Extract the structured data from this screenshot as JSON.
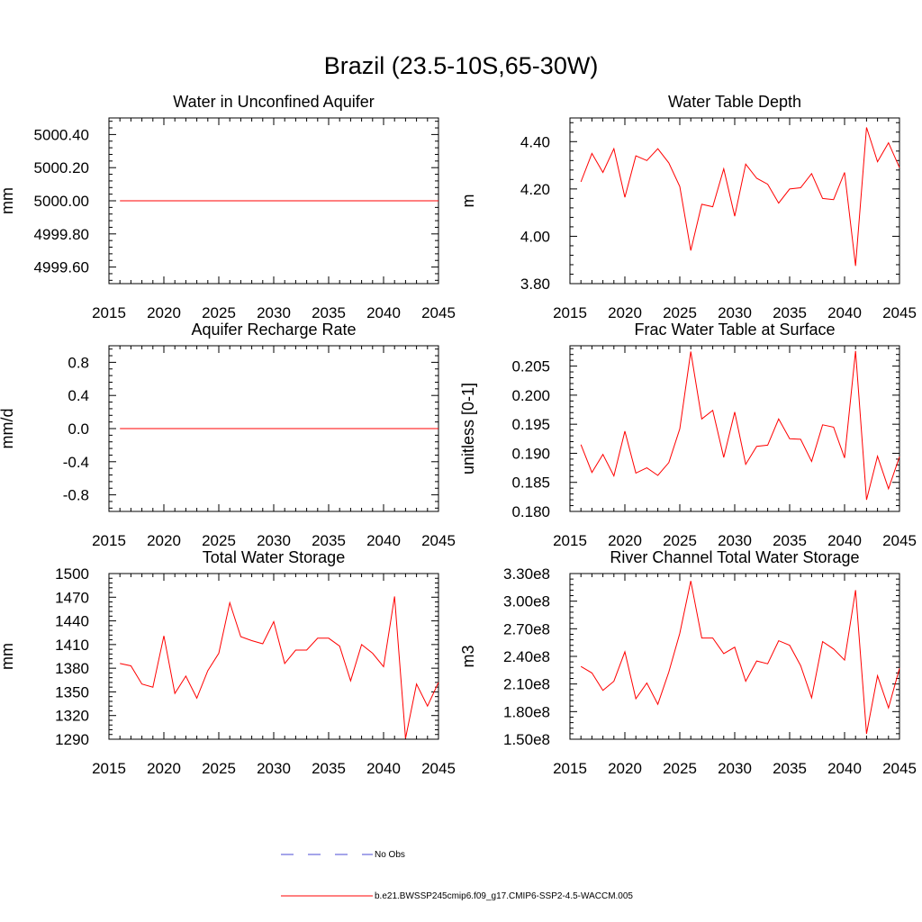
{
  "figure": {
    "title": "Brazil (23.5-10S,65-30W)"
  },
  "chart_data": [
    {
      "type": "line",
      "title": "Water in Unconfined Aquifer",
      "xlabel": "",
      "ylabel": "mm",
      "xlim": [
        2015,
        2045
      ],
      "ylim": [
        4999.5,
        5000.5
      ],
      "x_ticks": [
        2015,
        2020,
        2025,
        2030,
        2035,
        2040,
        2045
      ],
      "y_ticks": [
        "4999.60",
        "4999.80",
        "5000.00",
        "5000.20",
        "5000.40"
      ],
      "x": [
        2016,
        2017,
        2018,
        2019,
        2020,
        2021,
        2022,
        2023,
        2024,
        2025,
        2026,
        2027,
        2028,
        2029,
        2030,
        2031,
        2032,
        2033,
        2034,
        2035,
        2036,
        2037,
        2038,
        2039,
        2040,
        2041,
        2042,
        2043,
        2044,
        2045
      ],
      "series": [
        {
          "name": "b.e21.BWSSP245cmip6.f09_g17.CMIP6-SSP2-4.5-WACCM.005",
          "color": "#ff0000",
          "values": [
            5000,
            5000,
            5000,
            5000,
            5000,
            5000,
            5000,
            5000,
            5000,
            5000,
            5000,
            5000,
            5000,
            5000,
            5000,
            5000,
            5000,
            5000,
            5000,
            5000,
            5000,
            5000,
            5000,
            5000,
            5000,
            5000,
            5000,
            5000,
            5000,
            5000
          ]
        }
      ]
    },
    {
      "type": "line",
      "title": "Water Table Depth",
      "xlabel": "",
      "ylabel": "m",
      "xlim": [
        2015,
        2045
      ],
      "ylim": [
        3.8,
        4.5
      ],
      "x_ticks": [
        2015,
        2020,
        2025,
        2030,
        2035,
        2040,
        2045
      ],
      "y_ticks": [
        "3.80",
        "4.00",
        "4.20",
        "4.40"
      ],
      "x": [
        2016,
        2017,
        2018,
        2019,
        2020,
        2021,
        2022,
        2023,
        2024,
        2025,
        2026,
        2027,
        2028,
        2029,
        2030,
        2031,
        2032,
        2033,
        2034,
        2035,
        2036,
        2037,
        2038,
        2039,
        2040,
        2041,
        2042,
        2043,
        2044,
        2045
      ],
      "series": [
        {
          "name": "b.e21.BWSSP245cmip6.f09_g17.CMIP6-SSP2-4.5-WACCM.005",
          "color": "#ff0000",
          "values": [
            4.23,
            4.35,
            4.27,
            4.37,
            4.165,
            4.34,
            4.32,
            4.37,
            4.31,
            4.21,
            3.94,
            4.135,
            4.125,
            4.285,
            4.085,
            4.305,
            4.245,
            4.22,
            4.14,
            4.2,
            4.205,
            4.265,
            4.16,
            4.155,
            4.27,
            3.875,
            4.46,
            4.315,
            4.395,
            4.29
          ]
        }
      ]
    },
    {
      "type": "line",
      "title": "Aquifer Recharge Rate",
      "xlabel": "",
      "ylabel": "mm/d",
      "xlim": [
        2015,
        2045
      ],
      "ylim": [
        -1.0,
        1.0
      ],
      "x_ticks": [
        2015,
        2020,
        2025,
        2030,
        2035,
        2040,
        2045
      ],
      "y_ticks": [
        "-0.8",
        "-0.4",
        "0.0",
        "0.4",
        "0.8"
      ],
      "x": [
        2016,
        2017,
        2018,
        2019,
        2020,
        2021,
        2022,
        2023,
        2024,
        2025,
        2026,
        2027,
        2028,
        2029,
        2030,
        2031,
        2032,
        2033,
        2034,
        2035,
        2036,
        2037,
        2038,
        2039,
        2040,
        2041,
        2042,
        2043,
        2044,
        2045
      ],
      "series": [
        {
          "name": "b.e21.BWSSP245cmip6.f09_g17.CMIP6-SSP2-4.5-WACCM.005",
          "color": "#ff0000",
          "values": [
            0,
            0,
            0,
            0,
            0,
            0,
            0,
            0,
            0,
            0,
            0,
            0,
            0,
            0,
            0,
            0,
            0,
            0,
            0,
            0,
            0,
            0,
            0,
            0,
            0,
            0,
            0,
            0,
            0,
            0
          ]
        }
      ]
    },
    {
      "type": "line",
      "title": "Frac Water Table at Surface",
      "xlabel": "",
      "ylabel": "unitless [0-1]",
      "xlim": [
        2015,
        2045
      ],
      "ylim": [
        0.18,
        0.2085
      ],
      "x_ticks": [
        2015,
        2020,
        2025,
        2030,
        2035,
        2040,
        2045
      ],
      "y_ticks": [
        "0.180",
        "0.185",
        "0.190",
        "0.195",
        "0.200",
        "0.205"
      ],
      "x": [
        2016,
        2017,
        2018,
        2019,
        2020,
        2021,
        2022,
        2023,
        2024,
        2025,
        2026,
        2027,
        2028,
        2029,
        2030,
        2031,
        2032,
        2033,
        2034,
        2035,
        2036,
        2037,
        2038,
        2039,
        2040,
        2041,
        2042,
        2043,
        2044,
        2045
      ],
      "series": [
        {
          "name": "b.e21.BWSSP245cmip6.f09_g17.CMIP6-SSP2-4.5-WACCM.005",
          "color": "#ff0000",
          "values": [
            0.1915,
            0.1867,
            0.1898,
            0.1861,
            0.1938,
            0.1866,
            0.1875,
            0.1862,
            0.1884,
            0.1942,
            0.2075,
            0.1959,
            0.1974,
            0.1893,
            0.1971,
            0.1881,
            0.1912,
            0.1914,
            0.1959,
            0.1925,
            0.1924,
            0.1886,
            0.1949,
            0.1945,
            0.1892,
            0.2076,
            0.182,
            0.1895,
            0.1839,
            0.1894
          ]
        }
      ]
    },
    {
      "type": "line",
      "title": "Total Water Storage",
      "xlabel": "",
      "ylabel": "mm",
      "xlim": [
        2015,
        2045
      ],
      "ylim": [
        1290,
        1500
      ],
      "x_ticks": [
        2015,
        2020,
        2025,
        2030,
        2035,
        2040,
        2045
      ],
      "y_ticks": [
        "1290",
        "1320",
        "1350",
        "1380",
        "1410",
        "1440",
        "1470",
        "1500"
      ],
      "x": [
        2016,
        2017,
        2018,
        2019,
        2020,
        2021,
        2022,
        2023,
        2024,
        2025,
        2026,
        2027,
        2028,
        2029,
        2030,
        2031,
        2032,
        2033,
        2034,
        2035,
        2036,
        2037,
        2038,
        2039,
        2040,
        2041,
        2042,
        2043,
        2044,
        2045
      ],
      "series": [
        {
          "name": "b.e21.BWSSP245cmip6.f09_g17.CMIP6-SSP2-4.5-WACCM.005",
          "color": "#ff0000",
          "values": [
            1386,
            1383,
            1360,
            1356,
            1421,
            1348,
            1370,
            1342,
            1377,
            1399,
            1463,
            1420,
            1415,
            1411,
            1439,
            1386,
            1403,
            1403,
            1418,
            1418,
            1408,
            1364,
            1410,
            1399,
            1382,
            1471,
            1291,
            1360,
            1332,
            1362
          ]
        }
      ]
    },
    {
      "type": "line",
      "title": "River Channel Total Water Storage",
      "xlabel": "",
      "ylabel": "m3",
      "xlim": [
        2015,
        2045
      ],
      "ylim": [
        150000000,
        330000000
      ],
      "x_ticks": [
        2015,
        2020,
        2025,
        2030,
        2035,
        2040,
        2045
      ],
      "y_ticks": [
        "1.50e8",
        "1.80e8",
        "2.10e8",
        "2.40e8",
        "2.70e8",
        "3.00e8",
        "3.30e8"
      ],
      "x": [
        2016,
        2017,
        2018,
        2019,
        2020,
        2021,
        2022,
        2023,
        2024,
        2025,
        2026,
        2027,
        2028,
        2029,
        2030,
        2031,
        2032,
        2033,
        2034,
        2035,
        2036,
        2037,
        2038,
        2039,
        2040,
        2041,
        2042,
        2043,
        2044,
        2045
      ],
      "series": [
        {
          "name": "b.e21.BWSSP245cmip6.f09_g17.CMIP6-SSP2-4.5-WACCM.005",
          "color": "#ff0000",
          "values": [
            229000000,
            222000000,
            203000000,
            213000000,
            245000000,
            194000000,
            211000000,
            188000000,
            223000000,
            265000000,
            322000000,
            260000000,
            260000000,
            243000000,
            250000000,
            213000000,
            235000000,
            232000000,
            257000000,
            252000000,
            230000000,
            195000000,
            256000000,
            248000000,
            236000000,
            312000000,
            156000000,
            219000000,
            184000000,
            227000000
          ]
        }
      ]
    }
  ],
  "legend": {
    "items": [
      {
        "label": "No Obs",
        "color": "#4b4bd6",
        "style": "dashed"
      },
      {
        "label": "b.e21.BWSSP245cmip6.f09_g17.CMIP6-SSP2-4.5-WACCM.005",
        "color": "#ff0000",
        "style": "solid"
      }
    ]
  }
}
